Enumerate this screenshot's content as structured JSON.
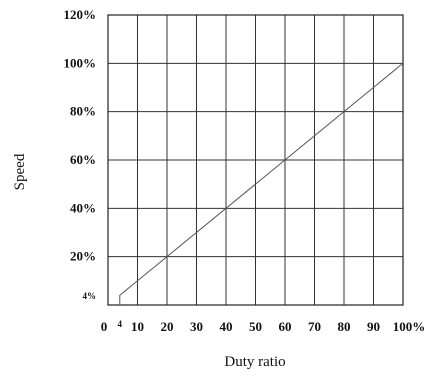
{
  "chart_data": {
    "type": "line",
    "title": "",
    "xlabel": "Duty ratio",
    "ylabel": "Speed",
    "xlim": [
      0,
      100
    ],
    "ylim": [
      0,
      120
    ],
    "grid": true,
    "x_ticks": [
      {
        "value": 0,
        "label": "0"
      },
      {
        "value": 4,
        "label": "4"
      },
      {
        "value": 10,
        "label": "10"
      },
      {
        "value": 20,
        "label": "20"
      },
      {
        "value": 30,
        "label": "30"
      },
      {
        "value": 40,
        "label": "40"
      },
      {
        "value": 50,
        "label": "50"
      },
      {
        "value": 60,
        "label": "60"
      },
      {
        "value": 70,
        "label": "70"
      },
      {
        "value": 80,
        "label": "80"
      },
      {
        "value": 90,
        "label": "90"
      },
      {
        "value": 100,
        "label": "100%"
      }
    ],
    "y_ticks": [
      {
        "value": 4,
        "label": "4%"
      },
      {
        "value": 20,
        "label": "20%"
      },
      {
        "value": 40,
        "label": "40%"
      },
      {
        "value": 60,
        "label": "60%"
      },
      {
        "value": 80,
        "label": "80%"
      },
      {
        "value": 100,
        "label": "100%"
      },
      {
        "value": 120,
        "label": "120%"
      }
    ],
    "series": [
      {
        "x": [
          4,
          4,
          100
        ],
        "y": [
          0,
          4,
          100
        ]
      }
    ]
  }
}
